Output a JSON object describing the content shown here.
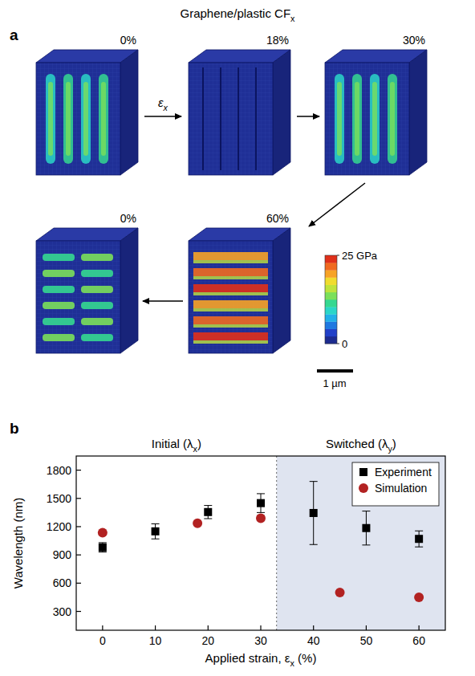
{
  "figure": {
    "title": [
      "Graphene/plastic CF",
      "x"
    ],
    "panel_a": {
      "letter": "a",
      "arrow_label": [
        "ε",
        "x"
      ],
      "states": [
        "0%",
        "18%",
        "30%",
        "60%",
        "0%"
      ],
      "colorbar": {
        "lim": [
          0,
          25
        ],
        "ticks": [
          {
            "value": 25,
            "label": "25 GPa"
          },
          0
        ]
      },
      "scale_bar": "1 µm"
    },
    "panel_b": {
      "letter": "b"
    }
  },
  "chart_data": {
    "type": "scatter",
    "xlabel": [
      "Applied strain, ε",
      "x",
      " (%)"
    ],
    "ylabel": "Wavelength (nm)",
    "xlim": [
      -5,
      65
    ],
    "xticks": [
      0,
      10,
      20,
      30,
      40,
      50,
      60
    ],
    "ylim": [
      100,
      1950
    ],
    "yticks": [
      300,
      600,
      900,
      1200,
      1500,
      1800
    ],
    "regions": [
      {
        "label": [
          "Initial (λ",
          "x",
          ")"
        ],
        "xlim": [
          -5,
          33
        ]
      },
      {
        "label": [
          "Switched (λ",
          "y",
          ")"
        ],
        "xlim": [
          33,
          65
        ],
        "color": "#dfe4f0"
      }
    ],
    "legend": "upper right",
    "series": [
      {
        "name": "Experiment",
        "color": "#000000",
        "marker": "square",
        "x": [
          0,
          10,
          20,
          30,
          40,
          50,
          60
        ],
        "values": [
          980,
          1150,
          1355,
          1450,
          1345,
          1185,
          1070
        ],
        "errors": [
          50,
          80,
          70,
          100,
          335,
          180,
          85
        ]
      },
      {
        "name": "Simulation",
        "color": "#b22222",
        "marker": "circle",
        "x": [
          0,
          18,
          30,
          45,
          60
        ],
        "values": [
          1135,
          1235,
          1290,
          500,
          450
        ]
      }
    ]
  }
}
